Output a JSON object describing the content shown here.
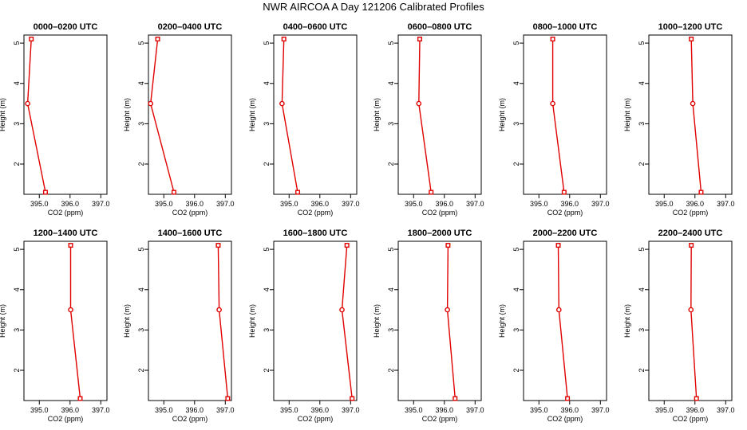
{
  "figure": {
    "title": "NWR AIRCOA A  Day 121206  Calibrated Profiles"
  },
  "style": {
    "series_color": "#e00000",
    "axis_color": "#000000"
  },
  "chart_data": [
    {
      "type": "line",
      "title": "0000–0200 UTC",
      "xlabel": "CO2 (ppm)",
      "ylabel": "Height (m)",
      "xlim": [
        394.5,
        397.2
      ],
      "ylim": [
        1.25,
        5.2
      ],
      "xticks": [
        "395.0",
        "396.0",
        "397.0"
      ],
      "yticks": [
        "2",
        "3",
        "4",
        "5"
      ],
      "x": [
        394.74,
        394.62,
        395.2
      ],
      "y": [
        5.1,
        3.5,
        1.3
      ]
    },
    {
      "type": "line",
      "title": "0200–0400 UTC",
      "xlabel": "CO2 (ppm)",
      "ylabel": "Height (m)",
      "xlim": [
        394.5,
        397.2
      ],
      "ylim": [
        1.25,
        5.2
      ],
      "xticks": [
        "395.0",
        "396.0",
        "397.0"
      ],
      "yticks": [
        "2",
        "3",
        "4",
        "5"
      ],
      "x": [
        394.8,
        394.57,
        395.33
      ],
      "y": [
        5.1,
        3.5,
        1.3
      ]
    },
    {
      "type": "line",
      "title": "0400–0600 UTC",
      "xlabel": "CO2 (ppm)",
      "ylabel": "Height (m)",
      "xlim": [
        394.5,
        397.2
      ],
      "ylim": [
        1.25,
        5.2
      ],
      "xticks": [
        "395.0",
        "396.0",
        "397.0"
      ],
      "yticks": [
        "2",
        "3",
        "4",
        "5"
      ],
      "x": [
        394.83,
        394.77,
        395.28
      ],
      "y": [
        5.1,
        3.5,
        1.3
      ]
    },
    {
      "type": "line",
      "title": "0600–0800 UTC",
      "xlabel": "CO2 (ppm)",
      "ylabel": "Height (m)",
      "xlim": [
        394.5,
        397.2
      ],
      "ylim": [
        1.25,
        5.2
      ],
      "xticks": [
        "395.0",
        "396.0",
        "397.0"
      ],
      "yticks": [
        "2",
        "3",
        "4",
        "5"
      ],
      "x": [
        395.2,
        395.17,
        395.57
      ],
      "y": [
        5.1,
        3.5,
        1.3
      ]
    },
    {
      "type": "line",
      "title": "0800–1000 UTC",
      "xlabel": "CO2 (ppm)",
      "ylabel": "Height (m)",
      "xlim": [
        394.5,
        397.2
      ],
      "ylim": [
        1.25,
        5.2
      ],
      "xticks": [
        "395.0",
        "396.0",
        "397.0"
      ],
      "yticks": [
        "2",
        "3",
        "4",
        "5"
      ],
      "x": [
        395.45,
        395.45,
        395.82
      ],
      "y": [
        5.1,
        3.5,
        1.3
      ]
    },
    {
      "type": "line",
      "title": "1000–1200 UTC",
      "xlabel": "CO2 (ppm)",
      "ylabel": "Height (m)",
      "xlim": [
        394.5,
        397.2
      ],
      "ylim": [
        1.25,
        5.2
      ],
      "xticks": [
        "395.0",
        "396.0",
        "397.0"
      ],
      "yticks": [
        "2",
        "3",
        "4",
        "5"
      ],
      "x": [
        395.88,
        395.93,
        396.2
      ],
      "y": [
        5.1,
        3.5,
        1.3
      ]
    },
    {
      "type": "line",
      "title": "1200–1400 UTC",
      "xlabel": "CO2 (ppm)",
      "ylabel": "Height (m)",
      "xlim": [
        394.5,
        397.2
      ],
      "ylim": [
        1.25,
        5.2
      ],
      "xticks": [
        "395.0",
        "396.0",
        "397.0"
      ],
      "yticks": [
        "2",
        "3",
        "4",
        "5"
      ],
      "x": [
        396.02,
        396.02,
        396.33
      ],
      "y": [
        5.1,
        3.5,
        1.3
      ]
    },
    {
      "type": "line",
      "title": "1400–1600 UTC",
      "xlabel": "CO2 (ppm)",
      "ylabel": "Height (m)",
      "xlim": [
        394.5,
        397.2
      ],
      "ylim": [
        1.25,
        5.2
      ],
      "xticks": [
        "395.0",
        "396.0",
        "397.0"
      ],
      "yticks": [
        "2",
        "3",
        "4",
        "5"
      ],
      "x": [
        396.77,
        396.8,
        397.08
      ],
      "y": [
        5.1,
        3.5,
        1.3
      ]
    },
    {
      "type": "line",
      "title": "1600–1800 UTC",
      "xlabel": "CO2 (ppm)",
      "ylabel": "Height (m)",
      "xlim": [
        394.5,
        397.2
      ],
      "ylim": [
        1.25,
        5.2
      ],
      "xticks": [
        "395.0",
        "396.0",
        "397.0"
      ],
      "yticks": [
        "2",
        "3",
        "4",
        "5"
      ],
      "x": [
        396.88,
        396.72,
        397.05
      ],
      "y": [
        5.1,
        3.5,
        1.3
      ]
    },
    {
      "type": "line",
      "title": "1800–2000 UTC",
      "xlabel": "CO2 (ppm)",
      "ylabel": "Height (m)",
      "xlim": [
        394.5,
        397.2
      ],
      "ylim": [
        1.25,
        5.2
      ],
      "xticks": [
        "395.0",
        "396.0",
        "397.0"
      ],
      "yticks": [
        "2",
        "3",
        "4",
        "5"
      ],
      "x": [
        396.12,
        396.1,
        396.35
      ],
      "y": [
        5.1,
        3.5,
        1.3
      ]
    },
    {
      "type": "line",
      "title": "2000–2200 UTC",
      "xlabel": "CO2 (ppm)",
      "ylabel": "Height (m)",
      "xlim": [
        394.5,
        397.2
      ],
      "ylim": [
        1.25,
        5.2
      ],
      "xticks": [
        "395.0",
        "396.0",
        "397.0"
      ],
      "yticks": [
        "2",
        "3",
        "4",
        "5"
      ],
      "x": [
        395.63,
        395.65,
        395.93
      ],
      "y": [
        5.1,
        3.5,
        1.3
      ]
    },
    {
      "type": "line",
      "title": "2200–2400 UTC",
      "xlabel": "CO2 (ppm)",
      "ylabel": "Height (m)",
      "xlim": [
        394.5,
        397.2
      ],
      "ylim": [
        1.25,
        5.2
      ],
      "xticks": [
        "395.0",
        "396.0",
        "397.0"
      ],
      "yticks": [
        "2",
        "3",
        "4",
        "5"
      ],
      "x": [
        395.88,
        395.87,
        396.05
      ],
      "y": [
        5.1,
        3.5,
        1.3
      ]
    }
  ]
}
